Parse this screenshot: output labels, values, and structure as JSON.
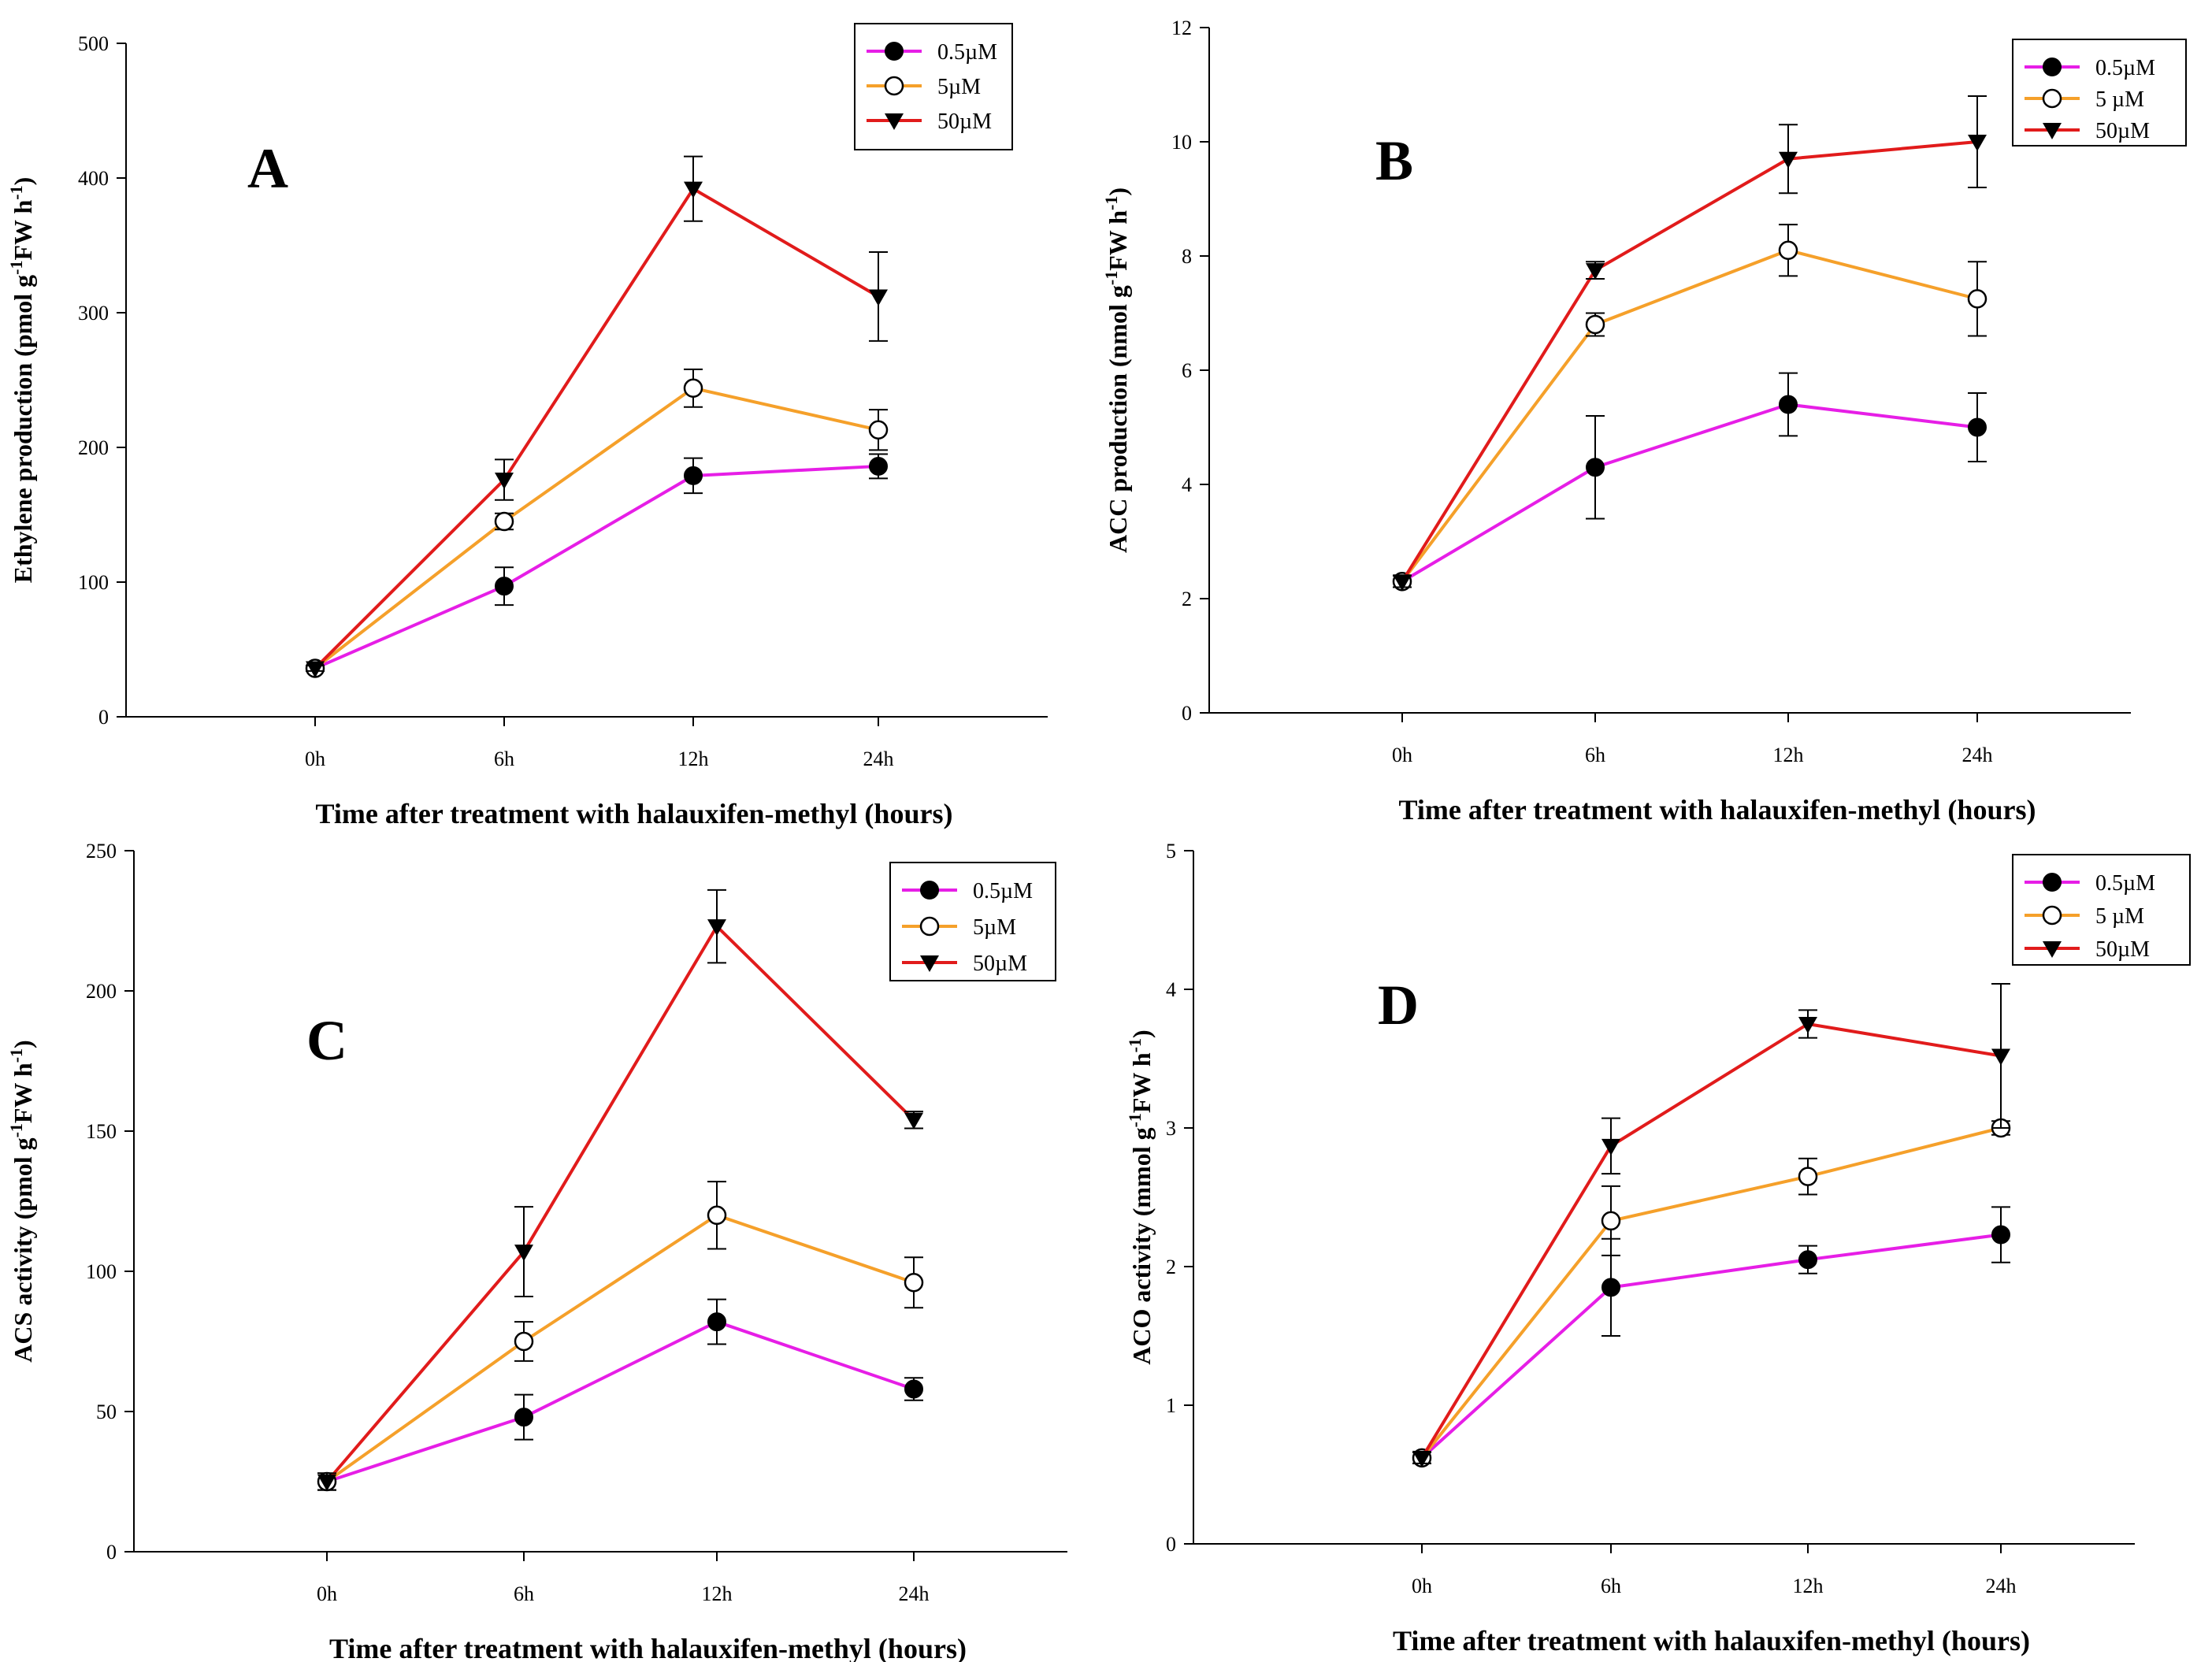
{
  "chart_data": [
    {
      "type": "line",
      "panel_label": "A",
      "title": "",
      "xlabel": "Time after treatment with halauxifen-methyl (hours)",
      "ylabel_parts": [
        "Ethylene production (pmol g",
        "-1",
        "FW h",
        "-1",
        ")"
      ],
      "categories": [
        "0h",
        "6h",
        "12h",
        "24h"
      ],
      "ylim": [
        0,
        500
      ],
      "yticks": [
        0,
        100,
        200,
        300,
        400,
        500
      ],
      "yticklabels": [
        "0",
        "100",
        "200",
        "300",
        "400",
        "500"
      ],
      "legend_position": "top-right",
      "series": [
        {
          "name": "0.5µM",
          "color": "#e61ee6",
          "marker": "filled-circle",
          "values": [
            36,
            97,
            179,
            186
          ],
          "errors": [
            2,
            14,
            13,
            9
          ]
        },
        {
          "name": "5µM",
          "color": "#f5a02a",
          "marker": "open-circle",
          "values": [
            36,
            145,
            244,
            213
          ],
          "errors": [
            2,
            6,
            14,
            15
          ]
        },
        {
          "name": "50µM",
          "color": "#e11b1b",
          "marker": "filled-triangle-down",
          "values": [
            36,
            176,
            392,
            312
          ],
          "errors": [
            2,
            15,
            24,
            33
          ]
        }
      ]
    },
    {
      "type": "line",
      "panel_label": "B",
      "title": "",
      "xlabel": "Time after treatment with halauxifen-methyl (hours)",
      "ylabel_parts": [
        "ACC production (nmol g",
        "-1",
        "FW h",
        "-1",
        ")"
      ],
      "categories": [
        "0h",
        "6h",
        "12h",
        "24h"
      ],
      "ylim": [
        0,
        12
      ],
      "yticks": [
        0,
        2,
        4,
        6,
        8,
        10,
        12
      ],
      "yticklabels": [
        "0",
        "2",
        "4",
        "6",
        "8",
        "10",
        "12"
      ],
      "legend_position": "top-right",
      "series": [
        {
          "name": "0.5µM",
          "color": "#e61ee6",
          "marker": "filled-circle",
          "values": [
            2.3,
            4.3,
            5.4,
            5.0
          ],
          "errors": [
            0.1,
            0.9,
            0.55,
            0.6
          ]
        },
        {
          "name": "5 µM",
          "color": "#f5a02a",
          "marker": "open-circle",
          "values": [
            2.3,
            6.8,
            8.1,
            7.25
          ],
          "errors": [
            0.1,
            0.2,
            0.45,
            0.65
          ]
        },
        {
          "name": "50µM",
          "color": "#e11b1b",
          "marker": "filled-triangle-down",
          "values": [
            2.3,
            7.75,
            9.7,
            10.0
          ],
          "errors": [
            0.1,
            0.15,
            0.6,
            0.8
          ]
        }
      ]
    },
    {
      "type": "line",
      "panel_label": "C",
      "title": "",
      "xlabel": "Time after treatment with halauxifen-methyl (hours)",
      "ylabel_parts": [
        "ACS activity (pmol g",
        "-1",
        "FW h",
        "-1",
        ")"
      ],
      "categories": [
        "0h",
        "6h",
        "12h",
        "24h"
      ],
      "ylim": [
        0,
        250
      ],
      "yticks": [
        0,
        50,
        100,
        150,
        200,
        250
      ],
      "yticklabels": [
        "0",
        "50",
        "100",
        "150",
        "200",
        "250"
      ],
      "legend_position": "top-right",
      "series": [
        {
          "name": "0.5µM",
          "color": "#e61ee6",
          "marker": "filled-circle",
          "values": [
            25,
            48,
            82,
            58
          ],
          "errors": [
            3,
            8,
            8,
            4
          ]
        },
        {
          "name": "5µM",
          "color": "#f5a02a",
          "marker": "open-circle",
          "values": [
            25,
            75,
            120,
            96
          ],
          "errors": [
            3,
            7,
            12,
            9
          ]
        },
        {
          "name": "50µM",
          "color": "#e11b1b",
          "marker": "filled-triangle-down",
          "values": [
            25,
            107,
            223,
            154
          ],
          "errors": [
            3,
            16,
            13,
            3
          ]
        }
      ]
    },
    {
      "type": "line",
      "panel_label": "D",
      "title": "",
      "xlabel": "Time after treatment with halauxifen-methyl (hours)",
      "ylabel_parts": [
        "ACO activity (mmol g",
        "-1",
        "FW h",
        "-1",
        ")"
      ],
      "categories": [
        "0h",
        "6h",
        "12h",
        "24h"
      ],
      "ylim": [
        0,
        5
      ],
      "yticks": [
        0,
        1,
        2,
        3,
        4,
        5
      ],
      "yticklabels": [
        "0",
        "1",
        "2",
        "3",
        "4",
        "5"
      ],
      "legend_position": "top-right",
      "series": [
        {
          "name": "0.5µM",
          "color": "#e61ee6",
          "marker": "filled-circle",
          "values": [
            0.62,
            1.85,
            2.05,
            2.23
          ],
          "errors": [
            0.04,
            0.35,
            0.1,
            0.2
          ]
        },
        {
          "name": "5 µM",
          "color": "#f5a02a",
          "marker": "open-circle",
          "values": [
            0.62,
            2.33,
            2.65,
            3.0
          ],
          "errors": [
            0.04,
            0.25,
            0.13,
            0.05
          ]
        },
        {
          "name": "50µM",
          "color": "#e11b1b",
          "marker": "filled-triangle-down",
          "values": [
            0.62,
            2.87,
            3.75,
            3.52
          ],
          "errors": [
            0.04,
            0.2,
            0.1,
            0.52
          ]
        }
      ]
    }
  ]
}
